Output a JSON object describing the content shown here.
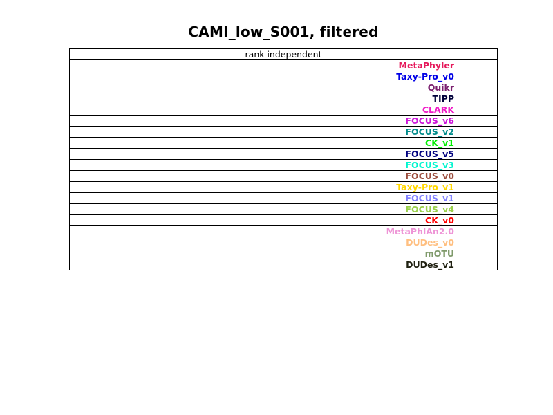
{
  "chart_data": {
    "type": "table",
    "title": "CAMI_low_S001, filtered",
    "header": "rank independent",
    "rows": [
      {
        "label": "MetaPhyler",
        "color": "#e6195b"
      },
      {
        "label": "Taxy-Pro_v0",
        "color": "#0000e6"
      },
      {
        "label": "Quikr",
        "color": "#7a1f6e"
      },
      {
        "label": "TIPP",
        "color": "#00003a"
      },
      {
        "label": "CLARK",
        "color": "#f01cc8"
      },
      {
        "label": "FOCUS_v6",
        "color": "#cc16d9"
      },
      {
        "label": "FOCUS_v2",
        "color": "#008b8b"
      },
      {
        "label": "CK_v1",
        "color": "#00ee00"
      },
      {
        "label": "FOCUS_v5",
        "color": "#00007f"
      },
      {
        "label": "FOCUS_v3",
        "color": "#00f5cf"
      },
      {
        "label": "FOCUS_v0",
        "color": "#9c4d3d"
      },
      {
        "label": "Taxy-Pro_v1",
        "color": "#ffd700"
      },
      {
        "label": "FOCUS_v1",
        "color": "#8181ff"
      },
      {
        "label": "FOCUS_v4",
        "color": "#99d04a"
      },
      {
        "label": "CK_v0",
        "color": "#ff0000"
      },
      {
        "label": "MetaPhlAn2.0",
        "color": "#ee94d6"
      },
      {
        "label": "DUDes_v0",
        "color": "#ffbf80"
      },
      {
        "label": "mOTU",
        "color": "#7f9a6b"
      },
      {
        "label": "DUDes_v1",
        "color": "#1f2010"
      }
    ]
  }
}
